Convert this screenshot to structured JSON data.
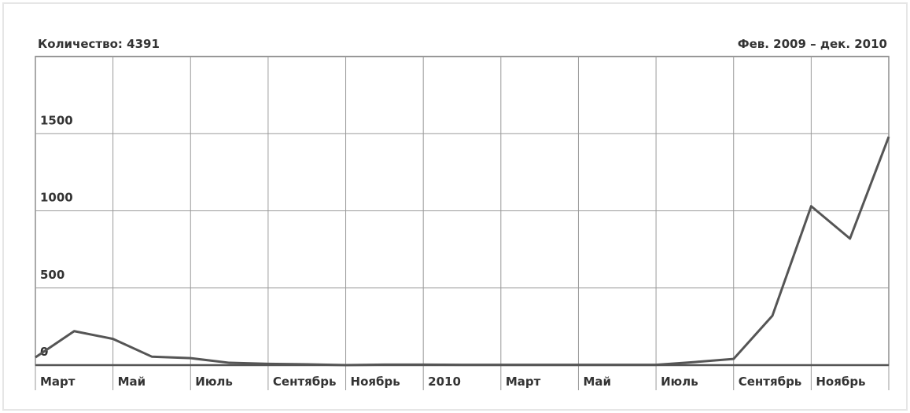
{
  "chart_data": {
    "type": "line",
    "title": "Количество: 4391",
    "subtitle": "Фев. 2009 – дек. 2010",
    "categories": [
      "Март",
      null,
      "Май",
      null,
      "Июль",
      null,
      "Сентябрь",
      null,
      "Ноябрь",
      null,
      "2010",
      null,
      "Март",
      null,
      "Май",
      null,
      "Июль",
      null,
      "Сентябрь",
      null,
      "Ноябрь",
      null,
      null
    ],
    "values": [
      50,
      220,
      170,
      55,
      45,
      15,
      8,
      5,
      0,
      3,
      3,
      2,
      2,
      2,
      2,
      2,
      2,
      20,
      40,
      320,
      1030,
      820,
      1480
    ],
    "color": "#555555",
    "ylim": [
      0,
      2000
    ],
    "yticks": [
      0,
      500,
      1000,
      1500
    ],
    "grid": true
  }
}
